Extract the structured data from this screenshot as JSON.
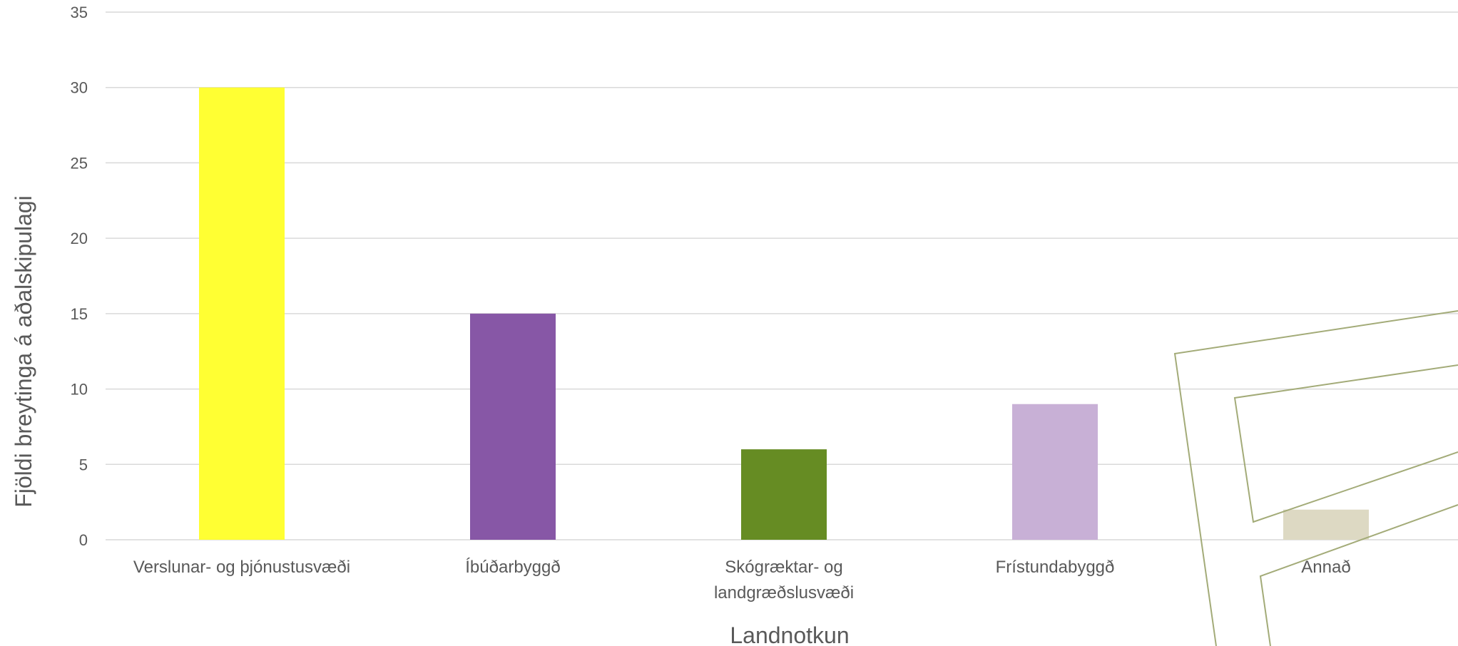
{
  "chart_data": {
    "type": "bar",
    "title": "",
    "xlabel": "Landnotkun",
    "ylabel": "Fjöldi breytinga á aðalskipulagi",
    "ylim": [
      0,
      35
    ],
    "yticks": [
      0,
      5,
      10,
      15,
      20,
      25,
      30,
      35
    ],
    "grid": true,
    "legend": "none",
    "categories": [
      [
        "Verslunar- og þjónustusvæði"
      ],
      [
        "Íbúðarbyggð"
      ],
      [
        "Skógræktar- og",
        "landgræðslusvæði"
      ],
      [
        "Frístundabyggð"
      ],
      [
        "Annað"
      ]
    ],
    "values": [
      30,
      15,
      6,
      9,
      2
    ],
    "colors": [
      "#ffff33",
      "#8757a6",
      "#668c23",
      "#c8b0d6",
      "#ddd9c3"
    ]
  }
}
